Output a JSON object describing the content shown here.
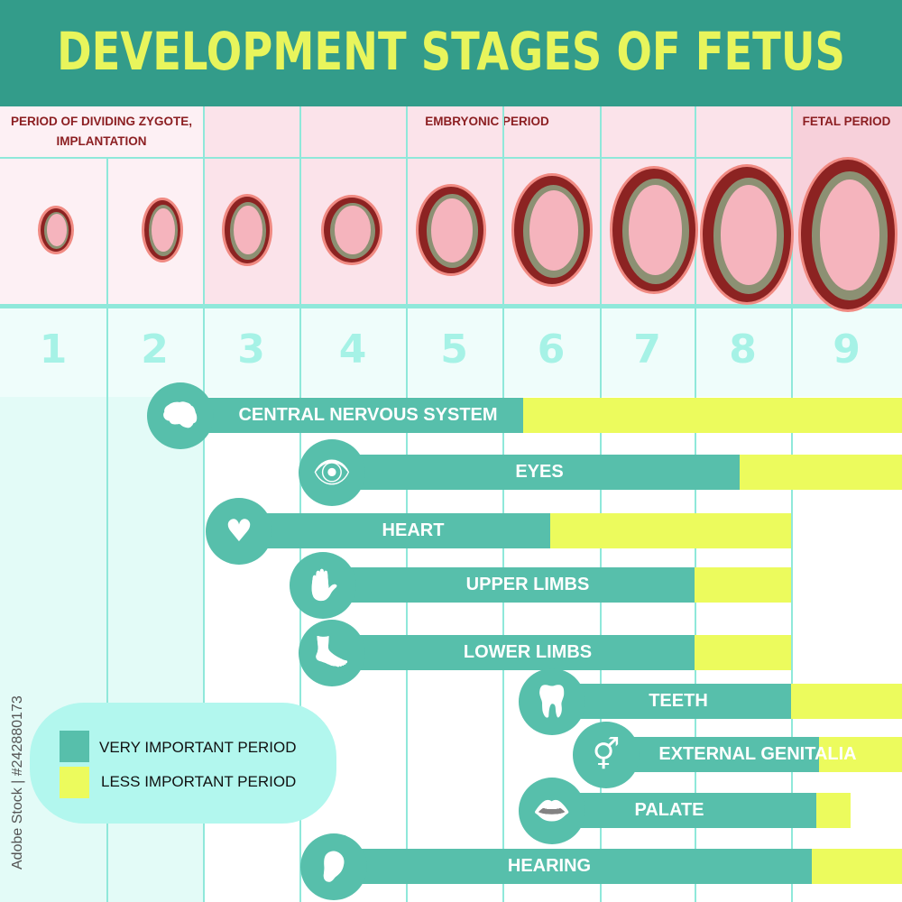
{
  "title": "DEVELOPMENT STAGES OF FETUS",
  "periods": [
    "PERIOD  OF DIVIDING ZYGOTE,  IMPLANTATION",
    "EMBRYONIC PERIOD",
    "FETAL PERIOD"
  ],
  "months": [
    "1",
    "2",
    "3",
    "4",
    "5",
    "6",
    "7",
    "8",
    "9"
  ],
  "organs": [
    {
      "label": "CENTRAL NERVOUS SYSTEM",
      "icon": "brain-icon"
    },
    {
      "label": "EYES",
      "icon": "eye-icon"
    },
    {
      "label": "HEART",
      "icon": "heart-organ-icon"
    },
    {
      "label": "UPPER LIMBS",
      "icon": "hand-icon"
    },
    {
      "label": "LOWER LIMBS",
      "icon": "foot-icon"
    },
    {
      "label": "TEETH",
      "icon": "tooth-icon"
    },
    {
      "label": "EXTERNAL GENITALIA",
      "icon": "gender-icon"
    },
    {
      "label": "PALATE",
      "icon": "lips-icon"
    },
    {
      "label": "HEARING",
      "icon": "ear-icon"
    }
  ],
  "legend": {
    "very": "VERY IMPORTANT PERIOD",
    "less": "LESS IMPORTANT PERIOD"
  },
  "colors": {
    "very": "#57bfab",
    "less": "#ecfb5d",
    "header": "#339c8a",
    "title": "#e8f55c"
  },
  "watermark": "Adobe Stock | #242880173"
}
